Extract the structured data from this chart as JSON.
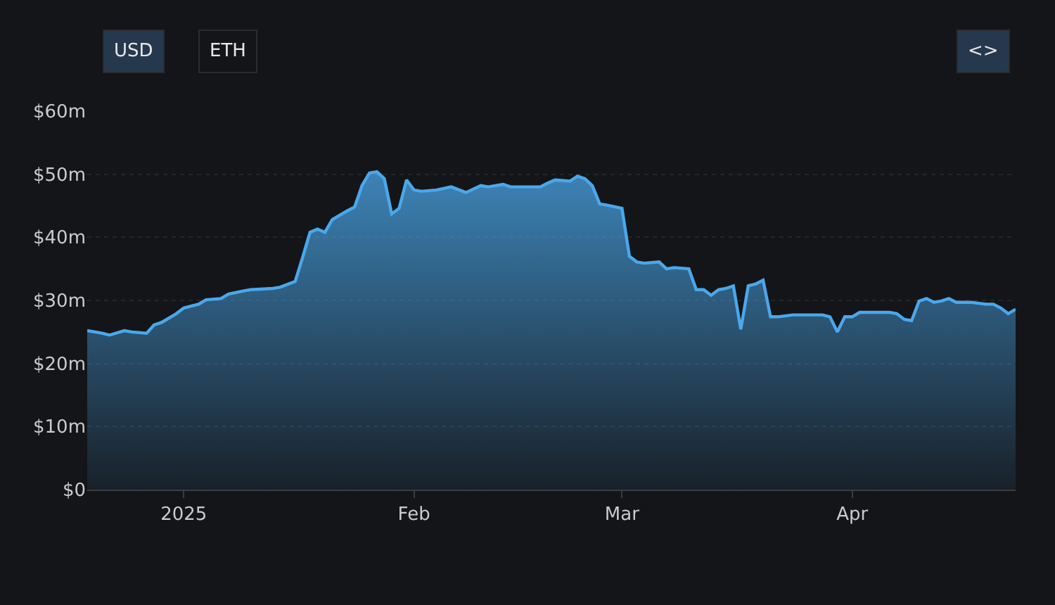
{
  "chart_data": {
    "type": "area",
    "x": [
      "2024-12-19",
      "2024-12-21",
      "2024-12-22",
      "2024-12-24",
      "2024-12-25",
      "2024-12-27",
      "2024-12-28",
      "2024-12-29",
      "2024-12-31",
      "2025-01-01",
      "2025-01-03",
      "2025-01-04",
      "2025-01-06",
      "2025-01-07",
      "2025-01-09",
      "2025-01-10",
      "2025-01-13",
      "2025-01-14",
      "2025-01-16",
      "2025-01-17",
      "2025-01-18",
      "2025-01-19",
      "2025-01-20",
      "2025-01-21",
      "2025-01-22",
      "2025-01-23",
      "2025-01-24",
      "2025-01-25",
      "2025-01-26",
      "2025-01-27",
      "2025-01-28",
      "2025-01-29",
      "2025-01-30",
      "2025-01-31",
      "2025-02-01",
      "2025-02-02",
      "2025-02-04",
      "2025-02-06",
      "2025-02-08",
      "2025-02-10",
      "2025-02-11",
      "2025-02-13",
      "2025-02-14",
      "2025-02-15",
      "2025-02-18",
      "2025-02-19",
      "2025-02-20",
      "2025-02-22",
      "2025-02-23",
      "2025-02-24",
      "2025-02-25",
      "2025-02-26",
      "2025-02-27",
      "2025-03-01",
      "2025-03-02",
      "2025-03-03",
      "2025-03-04",
      "2025-03-06",
      "2025-03-07",
      "2025-03-08",
      "2025-03-10",
      "2025-03-11",
      "2025-03-12",
      "2025-03-13",
      "2025-03-14",
      "2025-03-15",
      "2025-03-16",
      "2025-03-17",
      "2025-03-18",
      "2025-03-19",
      "2025-03-20",
      "2025-03-21",
      "2025-03-22",
      "2025-03-24",
      "2025-03-26",
      "2025-03-28",
      "2025-03-29",
      "2025-03-30",
      "2025-03-31",
      "2025-04-01",
      "2025-04-02",
      "2025-04-04",
      "2025-04-06",
      "2025-04-07",
      "2025-04-08",
      "2025-04-09",
      "2025-04-10",
      "2025-04-11",
      "2025-04-12",
      "2025-04-13",
      "2025-04-14",
      "2025-04-15",
      "2025-04-17",
      "2025-04-19",
      "2025-04-20",
      "2025-04-21",
      "2025-04-22",
      "2025-04-23"
    ],
    "series": [
      {
        "color": "#4aa8ec",
        "values": [
          25.2,
          24.8,
          24.5,
          25.2,
          25.0,
          24.8,
          26.1,
          26.5,
          27.9,
          28.8,
          29.4,
          30.1,
          30.3,
          31.0,
          31.5,
          31.7,
          31.9,
          32.1,
          33.0,
          36.8,
          40.8,
          41.3,
          40.8,
          42.8,
          43.5,
          44.2,
          44.8,
          48.2,
          50.2,
          50.4,
          49.3,
          43.7,
          44.6,
          49.1,
          47.5,
          47.3,
          47.5,
          48.0,
          47.1,
          48.2,
          48.0,
          48.4,
          48.0,
          48.0,
          48.0,
          48.6,
          49.1,
          48.9,
          49.7,
          49.3,
          48.2,
          45.3,
          45.1,
          44.6,
          37.0,
          36.1,
          35.9,
          36.1,
          35.0,
          35.2,
          35.0,
          31.7,
          31.7,
          30.8,
          31.7,
          31.9,
          32.3,
          25.4,
          32.3,
          32.6,
          33.2,
          27.4,
          27.4,
          27.7,
          27.7,
          27.7,
          27.4,
          25.0,
          27.4,
          27.4,
          28.1,
          28.1,
          28.1,
          27.9,
          27.0,
          26.8,
          29.9,
          30.3,
          29.7,
          29.9,
          30.3,
          29.7,
          29.7,
          29.4,
          29.4,
          28.8,
          27.9,
          28.6
        ]
      }
    ],
    "xlim": [
      "2024-12-19",
      "2025-04-23"
    ],
    "xticks": [
      {
        "value": "2025-01-01",
        "label": "2025"
      },
      {
        "value": "2025-02-01",
        "label": "Feb"
      },
      {
        "value": "2025-03-01",
        "label": "Mar"
      },
      {
        "value": "2025-04-01",
        "label": "Apr"
      }
    ],
    "ylim": [
      0,
      60
    ],
    "yticks": [
      {
        "value": 0,
        "label": "$0"
      },
      {
        "value": 10,
        "label": "$10m"
      },
      {
        "value": 20,
        "label": "$20m"
      },
      {
        "value": 30,
        "label": "$30m"
      },
      {
        "value": 40,
        "label": "$40m"
      },
      {
        "value": 50,
        "label": "$50m"
      },
      {
        "value": 60,
        "label": "$60m"
      }
    ],
    "grid": "y",
    "legend": false,
    "annotations": [
      "USD",
      "ETH",
      "<>"
    ]
  }
}
